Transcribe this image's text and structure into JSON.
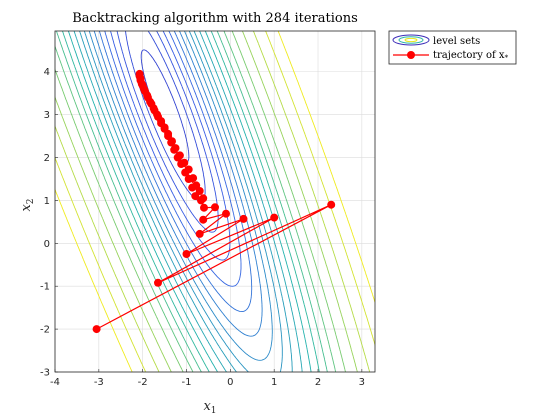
{
  "chart_data": {
    "type": "line",
    "title": "Backtracking algorithm with 284 iterations",
    "xlabel": "x",
    "xlabel_sub": "1",
    "ylabel": "x",
    "ylabel_sub": "2",
    "xlim": [
      -4,
      3.3
    ],
    "ylim": [
      -3,
      4.95
    ],
    "xticks": [
      -4,
      -3,
      -2,
      -1,
      0,
      1,
      2,
      3
    ],
    "yticks": [
      -3,
      -2,
      -1,
      0,
      1,
      2,
      3,
      4
    ],
    "grid": true,
    "legend_position": "outside-top-right",
    "legend": [
      {
        "label": "level sets",
        "kind": "contour"
      },
      {
        "label": "trajectory of x",
        "sub": "*",
        "kind": "line-marker"
      }
    ],
    "series": [
      {
        "name": "trajectory of x*",
        "color": "#ff0000",
        "x": [
          -3.05,
          2.3,
          -1.65,
          1.0,
          -1.0,
          0.3,
          -0.7,
          -0.1,
          -0.62,
          -0.35,
          -0.6,
          -0.67,
          -0.62,
          -0.8,
          -0.7,
          -0.87,
          -0.78,
          -0.95,
          -0.85,
          -1.03,
          -0.95,
          -1.12,
          -1.05,
          -1.2,
          -1.15,
          -1.28,
          -1.25,
          -1.35,
          -1.33,
          -1.42,
          -1.42,
          -1.5,
          -1.5,
          -1.58,
          -1.58,
          -1.65,
          -1.67,
          -1.73,
          -1.75,
          -1.8,
          -1.83,
          -1.88,
          -1.9,
          -1.95,
          -1.97,
          -2.0,
          -2.02,
          -2.05,
          -2.05,
          -2.07,
          -2.07
        ],
        "y": [
          -2.0,
          0.9,
          -0.92,
          0.6,
          -0.25,
          0.57,
          0.22,
          0.69,
          0.55,
          0.84,
          0.83,
          1.0,
          1.05,
          1.1,
          1.22,
          1.3,
          1.35,
          1.5,
          1.52,
          1.65,
          1.72,
          1.85,
          1.88,
          2.0,
          2.05,
          2.18,
          2.22,
          2.35,
          2.38,
          2.5,
          2.55,
          2.67,
          2.7,
          2.8,
          2.85,
          2.95,
          3.0,
          3.1,
          3.15,
          3.25,
          3.3,
          3.4,
          3.45,
          3.55,
          3.6,
          3.68,
          3.72,
          3.8,
          3.85,
          3.9,
          3.95
        ]
      }
    ],
    "contours": {
      "function": "f(x1,x2) = 0.5*(1.75*x1^2 + 1.5*x1*x2 + 0.35*x2^2) + 0.15*(x1 + 2.2)^2",
      "levels": [
        0.06,
        0.12,
        0.2,
        0.3,
        0.42,
        0.56,
        0.72,
        0.9,
        1.1,
        1.32,
        1.56,
        1.82,
        2.1,
        2.45,
        2.85,
        3.3,
        3.8,
        4.4,
        5.2,
        6.3,
        7.6,
        9.2,
        11.0
      ]
    }
  }
}
